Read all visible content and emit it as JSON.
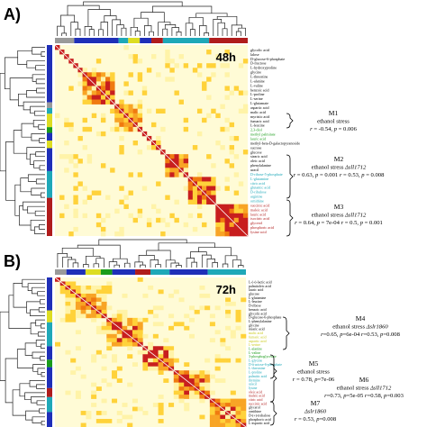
{
  "panels": [
    {
      "label": "A)",
      "time": "48h",
      "metabolites": [
        {
          "name": "glycolic acid",
          "color": "#000000"
        },
        {
          "name": "lalose",
          "color": "#000000"
        },
        {
          "name": "D-glucose-6-phosphate",
          "color": "#000000"
        },
        {
          "name": "D-fructose",
          "color": "#000000"
        },
        {
          "name": "L-hydroxyproline",
          "color": "#000000"
        },
        {
          "name": "glycine",
          "color": "#000000"
        },
        {
          "name": "L-threonine",
          "color": "#000000"
        },
        {
          "name": "L-alanine",
          "color": "#000000"
        },
        {
          "name": "L-valine",
          "color": "#000000"
        },
        {
          "name": "benzoic acid",
          "color": "#000000"
        },
        {
          "name": "L-proline",
          "color": "#000000"
        },
        {
          "name": "L-serine",
          "color": "#000000"
        },
        {
          "name": "L-glutamate",
          "color": "#000000"
        },
        {
          "name": "aspartic acid",
          "color": "#000000"
        },
        {
          "name": "malic acid",
          "color": "#000000"
        },
        {
          "name": "myristic acid",
          "color": "#000000"
        },
        {
          "name": "fumaric acid",
          "color": "#000000"
        },
        {
          "name": "L-leucine",
          "color": "#000000"
        },
        {
          "name": "2,3-diol",
          "color": "#1a9c1a"
        },
        {
          "name": "methyl palmitate",
          "color": "#1a9c1a"
        },
        {
          "name": "lauric acid",
          "color": "#1a9c1a"
        },
        {
          "name": "methyl-beta-D-galactopyranoside",
          "color": "#000000"
        },
        {
          "name": "sucrose",
          "color": "#000000"
        },
        {
          "name": "glucose",
          "color": "#000000"
        },
        {
          "name": "stearic acid",
          "color": "#000000"
        },
        {
          "name": "oleic acid",
          "color": "#000000"
        },
        {
          "name": "phenylalanine",
          "color": "#000000"
        },
        {
          "name": "uracil",
          "color": "#000000"
        },
        {
          "name": "D-ribose-5-phosphate",
          "color": "#1fa8b8"
        },
        {
          "name": "L-glutamine",
          "color": "#1fa8b8"
        },
        {
          "name": "citric acid",
          "color": "#1fa8b8"
        },
        {
          "name": "glutamic acid",
          "color": "#1fa8b8"
        },
        {
          "name": "D-ribulose",
          "color": "#1fa8b8"
        },
        {
          "name": "arginine",
          "color": "#1fa8b8"
        },
        {
          "name": "ornithine",
          "color": "#1fa8b8"
        },
        {
          "name": "succinic acid",
          "color": "#b01c1c"
        },
        {
          "name": "maleic acid",
          "color": "#b01c1c"
        },
        {
          "name": "lauric acid",
          "color": "#b01c1c"
        },
        {
          "name": "isocitric acid",
          "color": "#b01c1c"
        },
        {
          "name": "glycerol",
          "color": "#b01c1c"
        },
        {
          "name": "phosphoric acid",
          "color": "#b01c1c"
        },
        {
          "name": "lysine acid",
          "color": "#b01c1c"
        }
      ],
      "modules": [
        {
          "name": "M1",
          "lines": [
            [
              {
                "t": "ethanol stress",
                "i": false
              }
            ],
            [
              {
                "t": "r",
                "i": true
              },
              {
                "t": " = -0.54, ",
                "i": false
              },
              {
                "t": "p",
                "i": true
              },
              {
                "t": " = 0.006",
                "i": false
              }
            ]
          ]
        },
        {
          "name": "M2",
          "lines": [
            [
              {
                "t": "ethanol stress          ",
                "i": false
              },
              {
                "t": "Δsll1712",
                "i": true
              }
            ],
            [
              {
                "t": "r",
                "i": true
              },
              {
                "t": " = 0.63, ",
                "i": false
              },
              {
                "t": "p",
                "i": true
              },
              {
                "t": " = 0.001  ",
                "i": false
              },
              {
                "t": "r",
                "i": true
              },
              {
                "t": " = 0.53, ",
                "i": false
              },
              {
                "t": "p",
                "i": true
              },
              {
                "t": " = 0.008",
                "i": false
              }
            ]
          ]
        },
        {
          "name": "M3",
          "lines": [
            [
              {
                "t": "ethanol stress          ",
                "i": false
              },
              {
                "t": "Δsll1712",
                "i": true
              }
            ],
            [
              {
                "t": "r",
                "i": true
              },
              {
                "t": " = 0.64, ",
                "i": false
              },
              {
                "t": "p",
                "i": true
              },
              {
                "t": " = 7e-04  ",
                "i": false
              },
              {
                "t": "r",
                "i": true
              },
              {
                "t": " = 0.5, ",
                "i": false
              },
              {
                "t": "p",
                "i": true
              },
              {
                "t": " = 0.001",
                "i": false
              }
            ]
          ]
        }
      ]
    },
    {
      "label": "B)",
      "time": "72h",
      "metabolites": [
        {
          "name": "L-(+)-lactic acid",
          "color": "#000000"
        },
        {
          "name": "palmitoleic acid",
          "color": "#000000"
        },
        {
          "name": "lauric acid",
          "color": "#000000"
        },
        {
          "name": "glucose",
          "color": "#000000"
        },
        {
          "name": "L-glutamine",
          "color": "#000000"
        },
        {
          "name": "L-leucine",
          "color": "#000000"
        },
        {
          "name": "D-ribose",
          "color": "#000000"
        },
        {
          "name": "benzoic acid",
          "color": "#000000"
        },
        {
          "name": "glycolic acid",
          "color": "#000000"
        },
        {
          "name": "D-glucose-6-phosphate",
          "color": "#000000"
        },
        {
          "name": "L-phenylalanine",
          "color": "#000000"
        },
        {
          "name": "glycine",
          "color": "#000000"
        },
        {
          "name": "stearic acid",
          "color": "#000000"
        },
        {
          "name": "malic acid",
          "color": "#c9c91a"
        },
        {
          "name": "fumaric acid",
          "color": "#c9c91a"
        },
        {
          "name": "aspartic acid",
          "color": "#c9c91a"
        },
        {
          "name": "L-serine",
          "color": "#c9c91a"
        },
        {
          "name": "L-alanine",
          "color": "#1a9c1a"
        },
        {
          "name": "L-valine",
          "color": "#1a9c1a"
        },
        {
          "name": "3-phosphoglycerate",
          "color": "#1a9c1a"
        },
        {
          "name": "L-glycine",
          "color": "#1fa8b8"
        },
        {
          "name": "D-fructose-6-phosphate",
          "color": "#1fa8b8"
        },
        {
          "name": "L-threonine",
          "color": "#1fa8b8"
        },
        {
          "name": "L-proline",
          "color": "#1fa8b8"
        },
        {
          "name": "palmitic acid",
          "color": "#1fa8b8"
        },
        {
          "name": "thymine",
          "color": "#1fa8b8"
        },
        {
          "name": "uracil",
          "color": "#1fa8b8"
        },
        {
          "name": "lysine",
          "color": "#1fa8b8"
        },
        {
          "name": "oleic acid",
          "color": "#b01c1c"
        },
        {
          "name": "maleic acid",
          "color": "#b01c1c"
        },
        {
          "name": "citric acid",
          "color": "#b01c1c"
        },
        {
          "name": "succinic acid",
          "color": "#b01c1c"
        },
        {
          "name": "glycerol",
          "color": "#000000"
        },
        {
          "name": "ornithine",
          "color": "#000000"
        },
        {
          "name": "D-(+)-trehalose",
          "color": "#000000"
        },
        {
          "name": "phosphoric acid",
          "color": "#000000"
        },
        {
          "name": "L-aspartic acid",
          "color": "#000000"
        }
      ],
      "modules": [
        {
          "name": "M4",
          "lines": [
            [
              {
                "t": "ethanol stress  ",
                "i": false
              },
              {
                "t": "Δslr1860",
                "i": true
              }
            ],
            [
              {
                "t": "r",
                "i": true
              },
              {
                "t": "=0.65, ",
                "i": false
              },
              {
                "t": "p",
                "i": true
              },
              {
                "t": "=6e-04  ",
                "i": false
              },
              {
                "t": "r",
                "i": true
              },
              {
                "t": "=0.53, ",
                "i": false
              },
              {
                "t": "p",
                "i": true
              },
              {
                "t": "=0.008",
                "i": false
              }
            ]
          ]
        },
        {
          "name": "M5",
          "lines": [
            [
              {
                "t": "ethanol stress",
                "i": false
              }
            ],
            [
              {
                "t": "r",
                "i": true
              },
              {
                "t": " = 0.78, ",
                "i": false
              },
              {
                "t": "p",
                "i": true
              },
              {
                "t": "=7e-06",
                "i": false
              }
            ]
          ]
        },
        {
          "name": "M6",
          "lines": [
            [
              {
                "t": "ethanol stress  ",
                "i": false
              },
              {
                "t": "Δsll1712",
                "i": true
              }
            ],
            [
              {
                "t": "r",
                "i": true
              },
              {
                "t": "=0.73, ",
                "i": false
              },
              {
                "t": "p",
                "i": true
              },
              {
                "t": "=5e-05  ",
                "i": false
              },
              {
                "t": "r",
                "i": true
              },
              {
                "t": "=0.58, ",
                "i": false
              },
              {
                "t": "p",
                "i": true
              },
              {
                "t": "=0.003",
                "i": false
              }
            ]
          ]
        },
        {
          "name": "M7",
          "lines": [
            [
              {
                "t": "Δslr1860",
                "i": true
              }
            ],
            [
              {
                "t": "r",
                "i": true
              },
              {
                "t": " = 0.53, ",
                "i": false
              },
              {
                "t": "p",
                "i": true
              },
              {
                "t": "=0.008",
                "i": false
              }
            ]
          ]
        }
      ]
    }
  ],
  "colors": {
    "background": "#ffffff",
    "heat_low": "#fffbd6",
    "heat_mid": "#ffd23a",
    "heat_high": "#f07a10",
    "heat_max": "#c81e1e",
    "module_blue": "#1f2fb8",
    "module_cyan": "#1fa8b8",
    "module_red": "#b01c1c",
    "module_yellow": "#dddd22",
    "module_green": "#1a9c1a",
    "module_gray": "#9a9a9a"
  }
}
